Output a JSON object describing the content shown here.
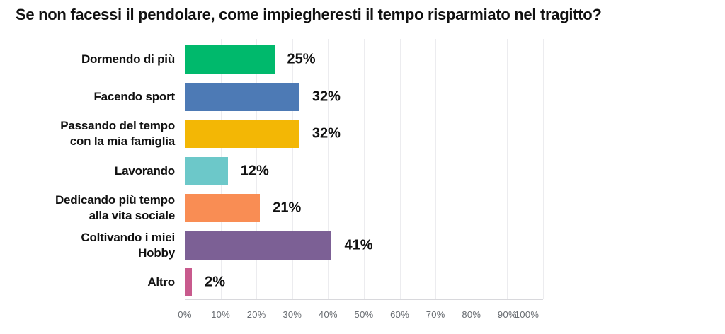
{
  "title": "Se non facessi il pendolare, come impiegheresti il tempo risparmiato nel tragitto?",
  "chart_data": {
    "type": "bar",
    "orientation": "horizontal",
    "title": "Se non facessi il pendolare, come impiegheresti il tempo risparmiato nel tragitto?",
    "categories": [
      "Dormendo di più",
      "Facendo sport",
      "Passando del tempo con la mia famiglia",
      "Lavorando",
      "Dedicando più tempo alla vita sociale",
      "Coltivando i miei Hobby",
      "Altro"
    ],
    "category_display_lines": [
      [
        "Dormendo di più"
      ],
      [
        "Facendo sport"
      ],
      [
        "Passando del tempo",
        "con la mia famiglia"
      ],
      [
        "Lavorando"
      ],
      [
        "Dedicando più tempo",
        "alla vita sociale"
      ],
      [
        "Coltivando i miei",
        "Hobby"
      ],
      [
        "Altro"
      ]
    ],
    "values": [
      25,
      32,
      32,
      12,
      21,
      41,
      2
    ],
    "value_labels": [
      "25%",
      "32%",
      "32%",
      "12%",
      "21%",
      "41%",
      "2%"
    ],
    "bar_colors": [
      "#00b96c",
      "#4d7ab5",
      "#f3b705",
      "#6cc8c9",
      "#f98d54",
      "#7c6095",
      "#c85a8d"
    ],
    "xlabel": "",
    "ylabel": "",
    "xlim": [
      0,
      100
    ],
    "x_tick_labels": [
      "0%",
      "10%",
      "20%",
      "30%",
      "40%",
      "50%",
      "60%",
      "70%",
      "80%",
      "90%",
      "100%"
    ],
    "grid": true,
    "legend": "none",
    "text_color": "#111111",
    "tick_label_color": "#696d72",
    "gridline_color": "#ececef"
  }
}
